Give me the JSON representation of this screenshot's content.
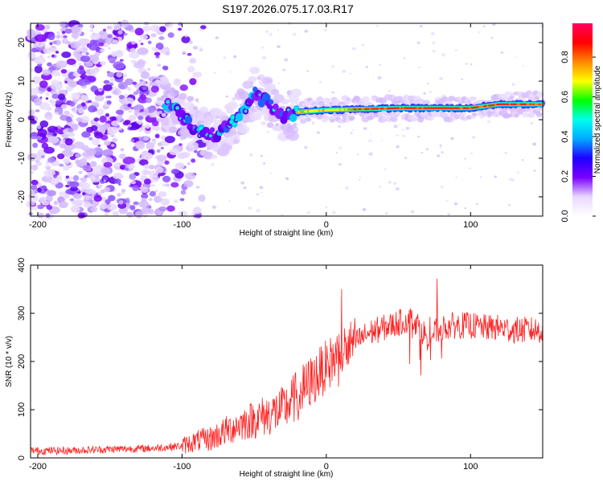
{
  "title": "S197.2026.075.17.03.R17",
  "chart_data": [
    {
      "type": "heatmap",
      "name": "spectrogram",
      "xlabel": "Height of straight line (km)",
      "ylabel": "Frequency (Hz)",
      "xlim": [
        -205,
        150
      ],
      "ylim": [
        -25,
        25
      ],
      "xticks": [
        -200,
        -100,
        0,
        100
      ],
      "yticks": [
        -20,
        -10,
        0,
        10,
        20
      ],
      "colorbar": {
        "label": "Normalized spectral amplitude",
        "range": [
          0,
          0.97
        ],
        "ticks": [
          0.0,
          0.2,
          0.4,
          0.6,
          0.8
        ],
        "colors": [
          "#ffffff",
          "#e8d8ff",
          "#7a00ff",
          "#2000ff",
          "#00aaff",
          "#00ffee",
          "#00ff00",
          "#ffff00",
          "#ff8800",
          "#ff0000",
          "#ff0060"
        ]
      },
      "ridge": {
        "description": "dominant frequency trace",
        "points": [
          [
            -110,
            4
          ],
          [
            -100,
            1
          ],
          [
            -90,
            -3
          ],
          [
            -75,
            -4
          ],
          [
            -60,
            1
          ],
          [
            -50,
            7
          ],
          [
            -40,
            4
          ],
          [
            -30,
            1
          ],
          [
            -20,
            2
          ],
          [
            0,
            2.5
          ],
          [
            50,
            3
          ],
          [
            100,
            3
          ],
          [
            120,
            4
          ],
          [
            150,
            4
          ]
        ]
      },
      "noise_region_below_height_km": -110
    },
    {
      "type": "line",
      "name": "snr",
      "xlabel": "Height of straight line (km)",
      "ylabel": "SNR (10 * v/v)",
      "xlim": [
        -205,
        150
      ],
      "ylim": [
        0,
        400
      ],
      "xticks": [
        -200,
        -100,
        0,
        100
      ],
      "yticks": [
        0,
        100,
        200,
        300,
        400
      ],
      "color": "#ff2020",
      "series": [
        {
          "name": "SNR",
          "x": [
            -205,
            -180,
            -150,
            -120,
            -100,
            -90,
            -80,
            -70,
            -60,
            -50,
            -40,
            -30,
            -20,
            -10,
            0,
            10,
            20,
            30,
            40,
            50,
            60,
            70,
            80,
            90,
            100,
            110,
            120,
            130,
            140,
            150
          ],
          "y": [
            15,
            15,
            18,
            20,
            25,
            35,
            40,
            55,
            70,
            80,
            90,
            100,
            130,
            160,
            190,
            220,
            240,
            260,
            270,
            280,
            290,
            250,
            270,
            275,
            275,
            270,
            270,
            265,
            265,
            265
          ]
        }
      ]
    }
  ]
}
